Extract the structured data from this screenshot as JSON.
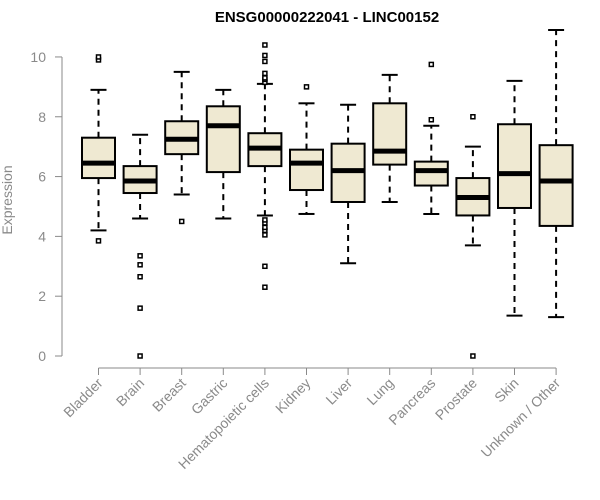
{
  "chart_data": {
    "type": "boxplot",
    "title": "ENSG00000222041 - LINC00152",
    "xlabel": "",
    "ylabel": "Expression",
    "ylim": [
      0,
      10.5
    ],
    "yticks": [
      0,
      2,
      4,
      6,
      8,
      10
    ],
    "grid": false,
    "legend": "none",
    "colors": {
      "box_fill": "#efe9d2",
      "box_stroke": "#000000",
      "axis": "#8a8a8a",
      "text": "#8a8a8a",
      "title": "#000000"
    },
    "categories": [
      "Bladder",
      "Brain",
      "Breast",
      "Gastric",
      "Hematopoietic cells",
      "Kidney",
      "Liver",
      "Lung",
      "Pancreas",
      "Prostate",
      "Skin",
      "Unknown / Other"
    ],
    "boxes": [
      {
        "category": "Bladder",
        "whisker_low": 4.2,
        "q1": 5.95,
        "median": 6.45,
        "q3": 7.3,
        "whisker_high": 8.9,
        "outliers": [
          3.85,
          9.9,
          10.0
        ]
      },
      {
        "category": "Brain",
        "whisker_low": 4.6,
        "q1": 5.45,
        "median": 5.85,
        "q3": 6.35,
        "whisker_high": 7.4,
        "outliers": [
          0.0,
          1.6,
          2.65,
          3.05,
          3.35
        ]
      },
      {
        "category": "Breast",
        "whisker_low": 5.4,
        "q1": 6.75,
        "median": 7.25,
        "q3": 7.85,
        "whisker_high": 9.5,
        "outliers": [
          4.5
        ]
      },
      {
        "category": "Gastric",
        "whisker_low": 4.6,
        "q1": 6.15,
        "median": 7.7,
        "q3": 8.35,
        "whisker_high": 8.9,
        "outliers": []
      },
      {
        "category": "Hematopoietic cells",
        "whisker_low": 4.7,
        "q1": 6.35,
        "median": 6.95,
        "q3": 7.45,
        "whisker_high": 9.1,
        "outliers": [
          2.3,
          3.0,
          4.05,
          4.2,
          4.3,
          4.45,
          4.55,
          9.15,
          9.25,
          9.3,
          9.45,
          9.85,
          10.05,
          10.4
        ]
      },
      {
        "category": "Kidney",
        "whisker_low": 4.75,
        "q1": 5.55,
        "median": 6.45,
        "q3": 6.9,
        "whisker_high": 8.45,
        "outliers": [
          9.0
        ]
      },
      {
        "category": "Liver",
        "whisker_low": 3.1,
        "q1": 5.15,
        "median": 6.2,
        "q3": 7.1,
        "whisker_high": 8.4,
        "outliers": []
      },
      {
        "category": "Lung",
        "whisker_low": 5.15,
        "q1": 6.4,
        "median": 6.85,
        "q3": 8.45,
        "whisker_high": 9.4,
        "outliers": []
      },
      {
        "category": "Pancreas",
        "whisker_low": 4.75,
        "q1": 5.7,
        "median": 6.2,
        "q3": 6.5,
        "whisker_high": 7.7,
        "outliers": [
          7.9,
          9.75
        ]
      },
      {
        "category": "Prostate",
        "whisker_low": 3.7,
        "q1": 4.7,
        "median": 5.3,
        "q3": 5.95,
        "whisker_high": 7.0,
        "outliers": [
          0.0,
          8.0
        ]
      },
      {
        "category": "Skin",
        "whisker_low": 1.35,
        "q1": 4.95,
        "median": 6.1,
        "q3": 7.75,
        "whisker_high": 9.2,
        "outliers": []
      },
      {
        "category": "Unknown / Other",
        "whisker_low": 1.3,
        "q1": 4.35,
        "median": 5.85,
        "q3": 7.05,
        "whisker_high": 10.9,
        "outliers": []
      }
    ]
  }
}
